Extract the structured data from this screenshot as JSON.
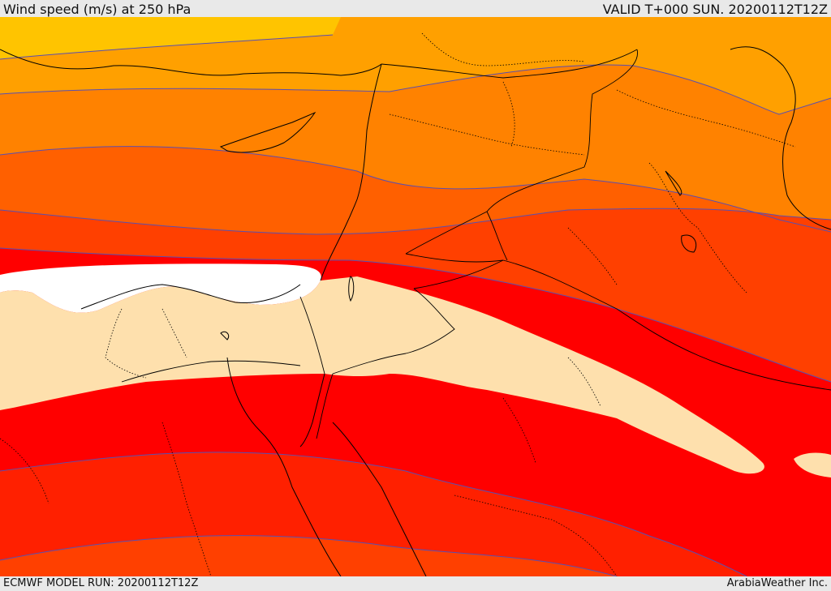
{
  "header": {
    "title": "Wind speed (m/s) at 250 hPa",
    "valid": "VALID T+000 SUN. 20200112T12Z"
  },
  "footer": {
    "model_run": "ECMWF MODEL RUN: 20200112T12Z",
    "brand": "ArabiaWeather Inc."
  },
  "colors": {
    "band_25_30": "#fee0ad",
    "band_30_35": "#ff0000",
    "band_35_40": "#ff2000",
    "band_40_45": "#ff4000",
    "band_45_50": "#ff6000",
    "band_50_55": "#ff8200",
    "band_55_60": "#ffa000",
    "band_60_plus": "#ffc400",
    "calm": "#ffffff",
    "contour_line": "#5a4fb0",
    "coastline": "#000000"
  },
  "map": {
    "variable": "wind speed",
    "level": "250 hPa",
    "layers": [
      "wind-speed-fill",
      "contour-lines",
      "coastlines",
      "country-borders",
      "province-borders"
    ]
  }
}
